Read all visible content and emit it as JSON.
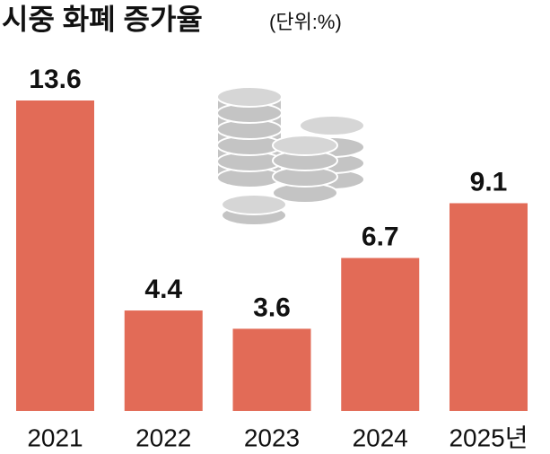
{
  "chart_data": {
    "type": "bar",
    "title": "시중 화폐 증가율",
    "subtitle": "(단위:%)",
    "categories": [
      "2021",
      "2022",
      "2023",
      "2024",
      "2025년"
    ],
    "values": [
      13.6,
      4.4,
      3.6,
      6.7,
      9.1
    ],
    "color": "#e26b57"
  }
}
